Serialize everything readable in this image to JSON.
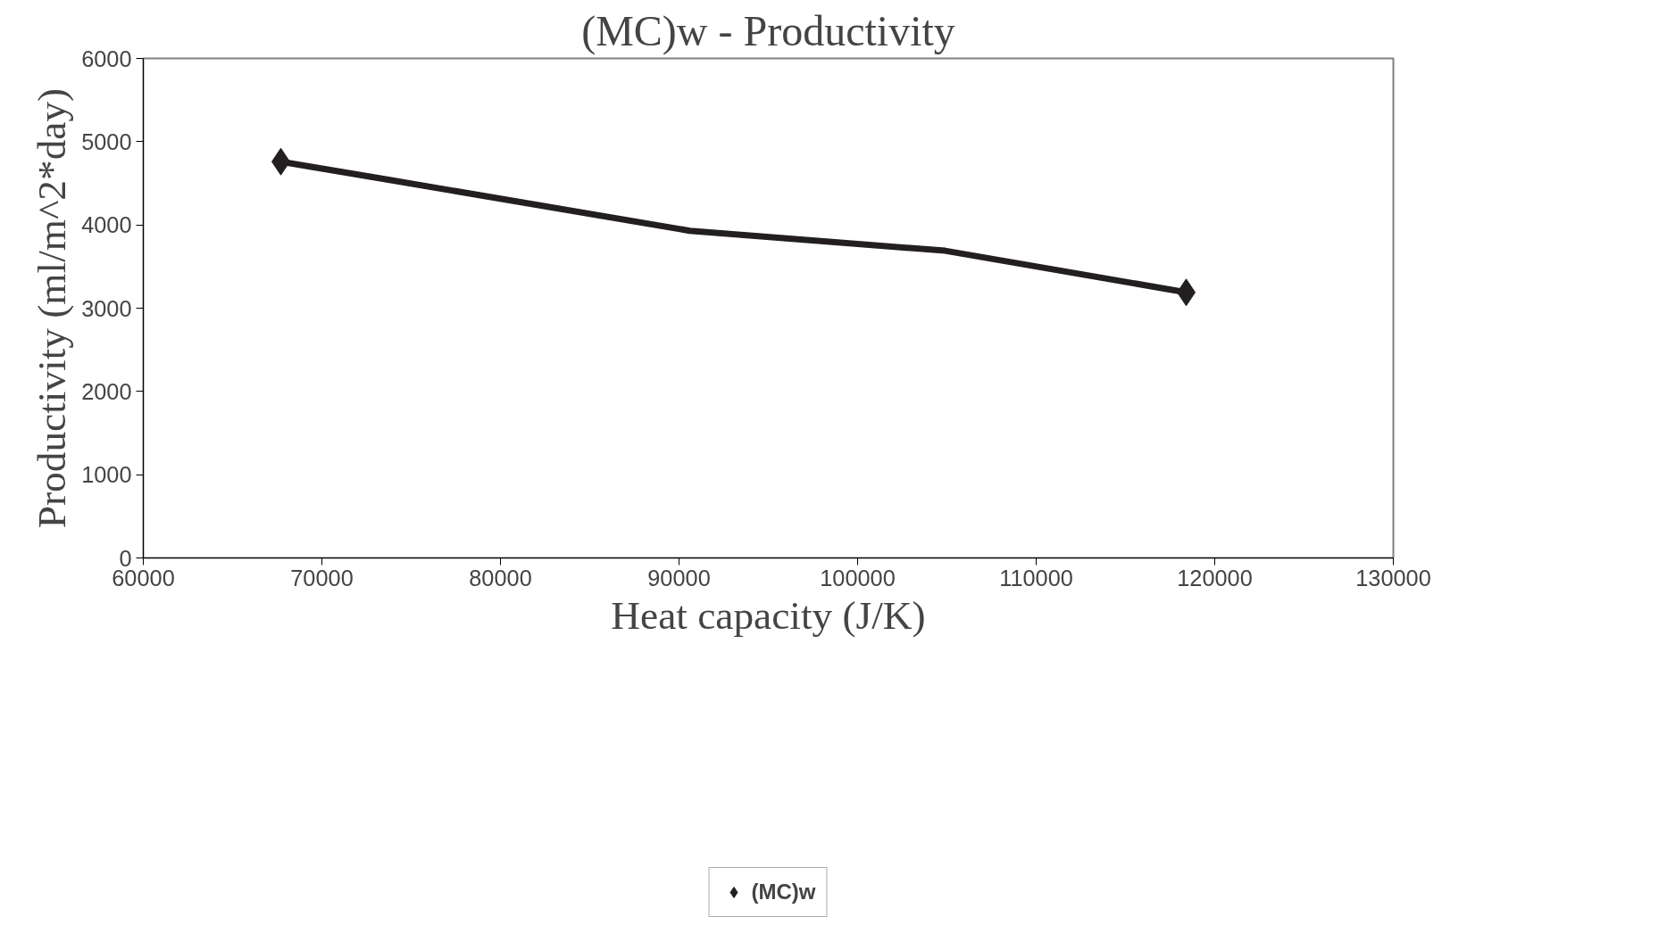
{
  "chart_data": {
    "type": "line",
    "title": "(MC)w - Productivity",
    "xlabel": "Heat capacity (J/K)",
    "ylabel": "Productivity (ml/m^2*day)",
    "xlim": [
      60000,
      130000
    ],
    "xticks": [
      60000,
      70000,
      80000,
      90000,
      100000,
      110000,
      120000,
      130000
    ],
    "ylim": [
      0,
      6000
    ],
    "yticks": [
      0,
      1000,
      2000,
      3000,
      4000,
      5000,
      6000
    ],
    "grid": false,
    "legend": "bottom",
    "series": [
      {
        "color": "#231f20",
        "x": [
          67700,
          73800,
          90600,
          104900,
          118400
        ],
        "values": [
          4760,
          4540,
          3930,
          3690,
          3190
        ]
      },
      {
        "type": "scatter",
        "name": "(MC)w",
        "color": "#231f20",
        "marker": "diamond",
        "x": [
          67700,
          118400
        ],
        "values": [
          4760,
          3190
        ]
      }
    ]
  }
}
